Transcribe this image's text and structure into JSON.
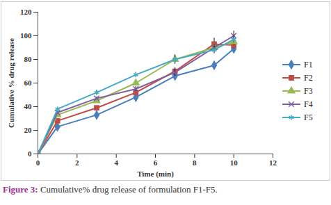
{
  "chart_data": {
    "type": "line",
    "title": "Figure 3: Cumulative% drug release of formulation F1-F5.",
    "x_label": "Time (min)",
    "y_label": "Cumulative % drug release",
    "x": [
      0,
      1,
      3,
      5,
      7,
      9,
      10
    ],
    "series": [
      {
        "name": "F1",
        "color": "#4a7ebb",
        "marker": "diamond",
        "values": [
          0,
          23,
          33,
          48,
          66,
          75,
          89
        ],
        "errors": [
          0,
          1,
          1,
          2,
          3,
          3,
          3
        ]
      },
      {
        "name": "F2",
        "color": "#be4b48",
        "marker": "square",
        "values": [
          0,
          28,
          39,
          52,
          70,
          93,
          92
        ],
        "errors": [
          0,
          1,
          1,
          2,
          3,
          5,
          3
        ]
      },
      {
        "name": "F3",
        "color": "#98b954",
        "marker": "triangle",
        "values": [
          0,
          33,
          45,
          60,
          80,
          90,
          95
        ],
        "errors": [
          0,
          1,
          1,
          2,
          2,
          3,
          3
        ]
      },
      {
        "name": "F4",
        "color": "#7d60a0",
        "marker": "times",
        "values": [
          0,
          35,
          47,
          55,
          69,
          90,
          100
        ],
        "errors": [
          0,
          1,
          1,
          2,
          3,
          3,
          4
        ]
      },
      {
        "name": "F5",
        "color": "#46aac5",
        "marker": "asterisk",
        "values": [
          0,
          38,
          52,
          67,
          80,
          88,
          97
        ],
        "errors": [
          0,
          1,
          2,
          2,
          4,
          3,
          3
        ]
      }
    ],
    "xlim": [
      0,
      12
    ],
    "xticks": [
      0,
      2,
      4,
      6,
      8,
      10,
      12
    ],
    "ylim": [
      0,
      120
    ],
    "yticks": [
      0,
      20,
      40,
      60,
      80,
      100,
      120
    ],
    "grid": false,
    "legend": "right"
  }
}
